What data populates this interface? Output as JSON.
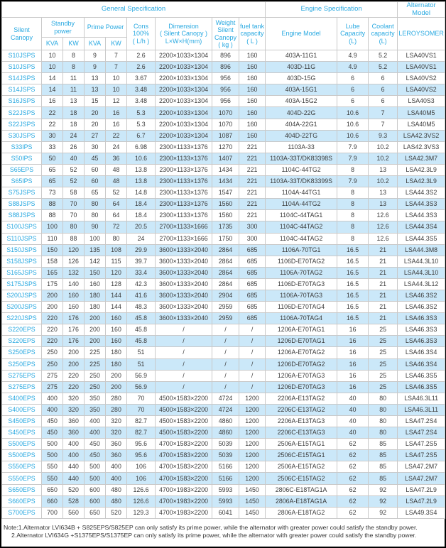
{
  "table": {
    "sections": {
      "general": "General Specification",
      "engine": "Engine Specification",
      "alternator": "Alternator Model"
    },
    "headers": {
      "silent_canopy": "Silent\nCanopy",
      "standby_power": "Standby\npower",
      "prime_power": "Prime Power",
      "standby_kva": "KVA",
      "standby_kw": "KW",
      "prime_kva": "KVA",
      "prime_kw": "KW",
      "cons": "Cons\n100%\n( L/h )",
      "dimension": "Dimension\n( Silent Canopy )\nL×W×H(mm)",
      "weight": "Weight\nSilent\nCanopy\n( kg )",
      "fuel_tank": "fuel tank\ncapacity\n( L )",
      "engine_model": "Engine Model",
      "lube": "Lube\nCapacity\n(L)",
      "coolant": "Coolant\ncapacity\n(L)",
      "leroysomer": "LEROYSOMER"
    },
    "col_keys": [
      "model-cell",
      "standby-kva-cell",
      "standby-kw-cell",
      "prime-kva-cell",
      "prime-kw-cell",
      "cons-cell",
      "dimension-cell",
      "weight-cell",
      "fuel-tank-cell",
      "engine-model-cell",
      "lube-capacity-cell",
      "coolant-capacity-cell",
      "alternator-cell"
    ],
    "rows": [
      [
        "S10JSPS",
        "10",
        "8",
        "9",
        "7",
        "2.6",
        "2200×1033×1304",
        "896",
        "160",
        "403A-11G1",
        "4.9",
        "5.2",
        "LSA40VS1"
      ],
      [
        "S10JSPS",
        "10",
        "8",
        "9",
        "7",
        "2.6",
        "2200×1033×1304",
        "896",
        "160",
        "403D-11G",
        "4.9",
        "5.2",
        "LSA40VS1"
      ],
      [
        "S14JSPS",
        "14",
        "11",
        "13",
        "10",
        "3.67",
        "2200×1033×1304",
        "956",
        "160",
        "403D-15G",
        "6",
        "6",
        "LSA40VS2"
      ],
      [
        "S14JSPS",
        "14",
        "11",
        "13",
        "10",
        "3.48",
        "2200×1033×1304",
        "956",
        "160",
        "403A-15G1",
        "6",
        "6",
        "LSA40VS2"
      ],
      [
        "S16JSPS",
        "16",
        "13",
        "15",
        "12",
        "3.48",
        "2200×1033×1304",
        "956",
        "160",
        "403A-15G2",
        "6",
        "6",
        "LSA40S3"
      ],
      [
        "S22JSPS",
        "22",
        "18",
        "20",
        "16",
        "5.3",
        "2200×1033×1304",
        "1070",
        "160",
        "404D-22G",
        "10.6",
        "7",
        "LSA40M5"
      ],
      [
        "S22JSPS",
        "22",
        "18",
        "20",
        "16",
        "5.3",
        "2200×1033×1304",
        "1070",
        "160",
        "404A-22G1",
        "10.6",
        "7",
        "LSA40M5"
      ],
      [
        "S30JSPS",
        "30",
        "24",
        "27",
        "22",
        "6.7",
        "2200×1033×1304",
        "1087",
        "160",
        "404D-22TG",
        "10.6",
        "9.3",
        "LSA42.3VS2"
      ],
      [
        "S33IPS",
        "33",
        "26",
        "30",
        "24",
        "6.98",
        "2300×1133×1376",
        "1270",
        "221",
        "1103A-33",
        "7.9",
        "10.2",
        "LAS42.3VS3"
      ],
      [
        "S50IPS",
        "50",
        "40",
        "45",
        "36",
        "10.6",
        "2300×1133×1376",
        "1407",
        "221",
        "1103A-33T/DK83398S",
        "7.9",
        "10.2",
        "LSA42.3M7"
      ],
      [
        "S65EPS",
        "65",
        "52",
        "60",
        "48",
        "13.8",
        "2300×1133×1376",
        "1434",
        "221",
        "1104C-44TG2",
        "8",
        "13",
        "LSA42.3L9"
      ],
      [
        "S65IPS",
        "65",
        "52",
        "60",
        "48",
        "13.8",
        "2300×1133×1376",
        "1434",
        "221",
        "1103A-33T/DK83399S",
        "7.9",
        "10.2",
        "LSA42.3L9"
      ],
      [
        "S75JSPS",
        "73",
        "58",
        "65",
        "52",
        "14.8",
        "2300×1133×1376",
        "1547",
        "221",
        "1104A-44TG1",
        "8",
        "13",
        "LSA44.3S2"
      ],
      [
        "S88JSPS",
        "88",
        "70",
        "80",
        "64",
        "18.4",
        "2300×1133×1376",
        "1560",
        "221",
        "1104A-44TG2",
        "8",
        "13",
        "LSA44.3S3"
      ],
      [
        "S88JSPS",
        "88",
        "70",
        "80",
        "64",
        "18.4",
        "2300×1133×1376",
        "1560",
        "221",
        "1104C-44TAG1",
        "8",
        "12.6",
        "LSA44.3S3"
      ],
      [
        "S100JSPS",
        "100",
        "80",
        "90",
        "72",
        "20.5",
        "2700×1133×1666",
        "1735",
        "300",
        "1104C-44TAG2",
        "8",
        "12.6",
        "LSA44.3S4"
      ],
      [
        "S110JSPS",
        "110",
        "88",
        "100",
        "80",
        "24",
        "2700×1133×1666",
        "1750",
        "300",
        "1104C-44TAG2",
        "8",
        "12.6",
        "LSA44.3S5"
      ],
      [
        "S150JSPS",
        "150",
        "120",
        "135",
        "108",
        "29.9",
        "3600×1333×2040",
        "2864",
        "685",
        "1106A-70TG1",
        "16.5",
        "21",
        "LSA44.3M8"
      ],
      [
        "S158JSPS",
        "158",
        "126",
        "142",
        "115",
        "39.7",
        "3600×1333×2040",
        "2864",
        "685",
        "1106D-E70TAG2",
        "16.5",
        "21",
        "LSA44.3L10"
      ],
      [
        "S165JSPS",
        "165",
        "132",
        "150",
        "120",
        "33.4",
        "3600×1333×2040",
        "2864",
        "685",
        "1106A-70TAG2",
        "16.5",
        "21",
        "LSA44.3L10"
      ],
      [
        "S175JSPS",
        "175",
        "140",
        "160",
        "128",
        "42.3",
        "3600×1333×2040",
        "2864",
        "685",
        "1106D-E70TAG3",
        "16.5",
        "21",
        "LSA44.3L12"
      ],
      [
        "S200JSPS",
        "200",
        "160",
        "180",
        "144",
        "41.6",
        "3600×1333×2040",
        "2904",
        "685",
        "1106A-70TAG3",
        "16.5",
        "21",
        "LSA46.3S2"
      ],
      [
        "S200JSPS",
        "200",
        "160",
        "180",
        "144",
        "48.3",
        "3600×1333×2040",
        "2959",
        "685",
        "1106D-E70TAG4",
        "16.5",
        "21",
        "LSA46.3S2"
      ],
      [
        "S220JSPS",
        "220",
        "176",
        "200",
        "160",
        "45.8",
        "3600×1333×2040",
        "2959",
        "685",
        "1106A-70TAG4",
        "16.5",
        "21",
        "LSA46.3S3"
      ],
      [
        "S220EPS",
        "220",
        "176",
        "200",
        "160",
        "45.8",
        "/",
        "/",
        "/",
        "1206A-E70TAG1",
        "16",
        "25",
        "LSA46.3S3"
      ],
      [
        "S220EPS",
        "220",
        "176",
        "200",
        "160",
        "45.8",
        "/",
        "/",
        "/",
        "1206D-E70TAG1",
        "16",
        "25",
        "LSA46.3S3"
      ],
      [
        "S250EPS",
        "250",
        "200",
        "225",
        "180",
        "51",
        "/",
        "/",
        "/",
        "1206A-E70TAG2",
        "16",
        "25",
        "LSA46.3S4"
      ],
      [
        "S250EPS",
        "250",
        "200",
        "225",
        "180",
        "51",
        "/",
        "/",
        "/",
        "1206D-E70TAG2",
        "16",
        "25",
        "LSA46.3S4"
      ],
      [
        "S275EPS",
        "275",
        "220",
        "250",
        "200",
        "56.9",
        "/",
        "/",
        "/",
        "1206A-E70TAG3",
        "16",
        "25",
        "LSA46.3S5"
      ],
      [
        "S275EPS",
        "275",
        "220",
        "250",
        "200",
        "56.9",
        "/",
        "/",
        "/",
        "1206D-E70TAG3",
        "16",
        "25",
        "LSA46.3S5"
      ],
      [
        "S400EPS",
        "400",
        "320",
        "350",
        "280",
        "70",
        "4500×1583×2200",
        "4724",
        "1200",
        "2206A-E13TAG2",
        "40",
        "80",
        "LSA46.3L11"
      ],
      [
        "S400EPS",
        "400",
        "320",
        "350",
        "280",
        "70",
        "4500×1583×2200",
        "4724",
        "1200",
        "2206C-E13TAG2",
        "40",
        "80",
        "LSA46.3L11"
      ],
      [
        "S450EPS",
        "450",
        "360",
        "400",
        "320",
        "82.7",
        "4500×1583×2200",
        "4860",
        "1200",
        "2206A-E13TAG3",
        "40",
        "80",
        "LSA47.2S4"
      ],
      [
        "S450EPS",
        "450",
        "360",
        "400",
        "320",
        "82.7",
        "4500×1583×2200",
        "4860",
        "1200",
        "2206C-E13TAG3",
        "40",
        "80",
        "LSA47.2S4"
      ],
      [
        "S500EPS",
        "500",
        "400",
        "450",
        "360",
        "95.6",
        "4700×1583×2200",
        "5039",
        "1200",
        "2506A-E15TAG1",
        "62",
        "85",
        "LSA47.2S5"
      ],
      [
        "S500EPS",
        "500",
        "400",
        "450",
        "360",
        "95.6",
        "4700×1583×2200",
        "5039",
        "1200",
        "2506C-E15TAG1",
        "62",
        "85",
        "LSA47.2S5"
      ],
      [
        "S550EPS",
        "550",
        "440",
        "500",
        "400",
        "106",
        "4700×1583×2200",
        "5166",
        "1200",
        "2506A-E15TAG2",
        "62",
        "85",
        "LSA47.2M7"
      ],
      [
        "S550EPS",
        "550",
        "440",
        "500",
        "400",
        "106",
        "4700×1583×2200",
        "5166",
        "1200",
        "2506C-E15TAG2",
        "62",
        "85",
        "LSA47.2M7"
      ],
      [
        "S650EPS",
        "650",
        "520",
        "600",
        "480",
        "126.6",
        "4700×1983×2200",
        "5993",
        "1450",
        "2806C-E18TAG1A",
        "62",
        "92",
        "LSA47.2L9"
      ],
      [
        "S660EPS",
        "660",
        "528",
        "600",
        "480",
        "126.6",
        "4700×1983×2200",
        "5993",
        "1450",
        "2806A-E18TAG1A",
        "62",
        "92",
        "LSA47.2L9"
      ],
      [
        "S700EPS",
        "700",
        "560",
        "650",
        "520",
        "129.3",
        "4700×1983×2200",
        "6041",
        "1450",
        "2806A-E18TAG2",
        "62",
        "92",
        "LSA49.3S4"
      ]
    ]
  },
  "notes": [
    "Note:1.Alternator LVI634B + S825EPS/S825EP can only satisfy its prime power, while the alternator with greater power could satisfy the standby power.",
    "2.Alternator LVI634G +S1375EPS/S1375EP can only satisfy its prime power, while the alternator with greater power could satisfy the standby power."
  ],
  "colors": {
    "accent": "#29a9e1",
    "row_alt_background": "#cbe8f9",
    "data_text": "#3c3c3c",
    "grid_border": "#c9c9c9",
    "outer_border": "#000000"
  }
}
